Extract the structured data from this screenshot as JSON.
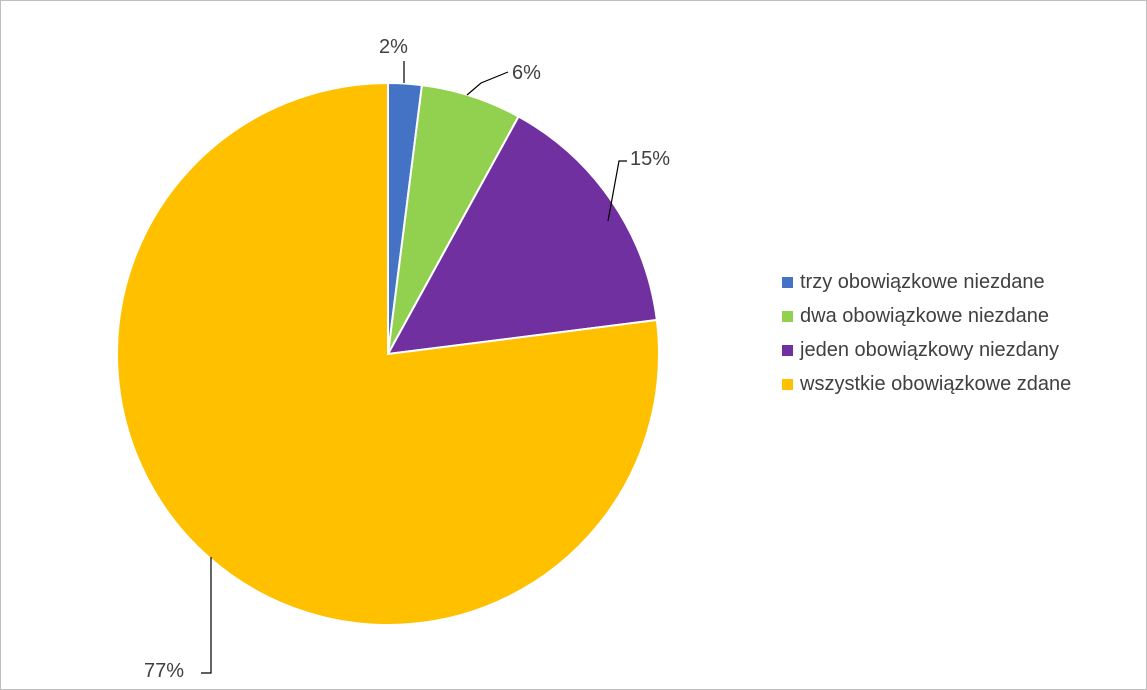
{
  "chart_data": {
    "type": "pie",
    "categories": [
      "trzy obowiązkowe niezdane",
      "dwa obowiązkowe niezdane",
      "jeden obowiązkowy niezdany",
      "wszystkie obowiązkowe zdane"
    ],
    "values": [
      2,
      6,
      15,
      77
    ],
    "data_labels": [
      "2%",
      "6%",
      "15%",
      "77%"
    ],
    "colors": [
      "#4472C4",
      "#92D050",
      "#7030A0",
      "#FFC000"
    ],
    "legend_position": "right",
    "title": ""
  }
}
